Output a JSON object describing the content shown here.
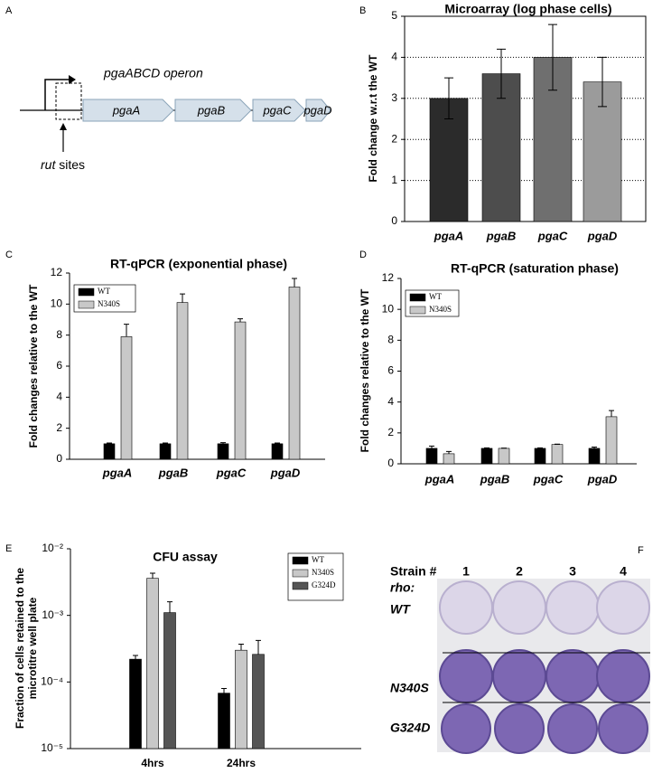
{
  "panel_labels": [
    "A",
    "B",
    "C",
    "D",
    "E",
    "F"
  ],
  "diagram": {
    "operon_label": "pgaABCD operon",
    "genes": [
      "pgaA",
      "pgaB",
      "pgaC",
      "pgaD"
    ],
    "site_label": [
      "rut",
      "sites"
    ]
  },
  "photo": {
    "column_header": "Strain #",
    "columns": [
      "1",
      "2",
      "3",
      "4"
    ],
    "row_header": "rho:",
    "rows": [
      "WT",
      "N340S",
      "G324D"
    ]
  },
  "chart_data": [
    {
      "type": "bar",
      "title": "Microarray (log phase cells)",
      "y_label": "Fold change w.r.t the WT",
      "categories": [
        "pgaA",
        "pgaB",
        "pgaC",
        "pgaD"
      ],
      "values": [
        3.0,
        3.6,
        4.0,
        3.4
      ],
      "errors": [
        0.5,
        0.6,
        0.8,
        0.6
      ],
      "colors": [
        "#2b2b2b",
        "#4d4d4d",
        "#6f6f6f",
        "#9b9b9b"
      ],
      "error_direction": "both",
      "ylim": [
        0,
        5
      ],
      "yticks": [
        0,
        1,
        2,
        3,
        4,
        5
      ],
      "grid": true,
      "frame": true
    },
    {
      "type": "bar",
      "title": "RT-qPCR (exponential phase)",
      "y_label": "Fold changes relative to the WT",
      "categories": [
        "pgaA",
        "pgaB",
        "pgaC",
        "pgaD"
      ],
      "series": [
        {
          "name": "WT",
          "color": "#000000",
          "values": [
            1,
            1,
            1,
            1
          ],
          "errors": [
            0.05,
            0.05,
            0.07,
            0.05
          ]
        },
        {
          "name": "N340S",
          "color": "#c8c8c8",
          "values": [
            7.9,
            10.1,
            8.85,
            11.1
          ],
          "errors": [
            0.8,
            0.55,
            0.2,
            0.55
          ]
        }
      ],
      "error_direction": "up",
      "ylim": [
        0,
        12
      ],
      "yticks": [
        0,
        2,
        4,
        6,
        8,
        10,
        12
      ],
      "legend": "upper left"
    },
    {
      "type": "bar",
      "title": "RT-qPCR (saturation phase)",
      "y_label": "Fold changes relative to the WT",
      "categories": [
        "pgaA",
        "pgaB",
        "pgaC",
        "pgaD"
      ],
      "series": [
        {
          "name": "WT",
          "color": "#000000",
          "values": [
            1.0,
            1.0,
            1.0,
            1.0
          ],
          "errors": [
            0.15,
            0.03,
            0.03,
            0.08
          ]
        },
        {
          "name": "N340S",
          "color": "#c8c8c8",
          "values": [
            0.65,
            1.0,
            1.25,
            3.05
          ],
          "errors": [
            0.15,
            0.02,
            0.02,
            0.4
          ]
        }
      ],
      "error_direction": "up",
      "ylim": [
        0,
        12
      ],
      "yticks": [
        0,
        2,
        4,
        6,
        8,
        10,
        12
      ],
      "legend": "upper left"
    },
    {
      "type": "bar",
      "title": "CFU assay",
      "y_label": [
        "Fraction of cells retained to the",
        "microtitre well plate"
      ],
      "categories": [
        "4hrs",
        "24hrs"
      ],
      "series": [
        {
          "name": "WT",
          "color": "#000000",
          "values": [
            0.00022,
            6.8e-05
          ],
          "errors": [
            3e-05,
            1.2e-05
          ]
        },
        {
          "name": "N340S",
          "color": "#c8c8c8",
          "values": [
            0.0036,
            0.0003
          ],
          "errors": [
            0.0007,
            7e-05
          ]
        },
        {
          "name": "G324D",
          "color": "#555555",
          "values": [
            0.0011,
            0.00026
          ],
          "errors": [
            0.0005,
            0.00016
          ]
        }
      ],
      "error_direction": "up",
      "log_scale": true,
      "ylim": [
        1e-05,
        0.01
      ],
      "yticks": [
        {
          "value": 1e-05,
          "label": "10⁻⁵"
        },
        {
          "value": 0.0001,
          "label": "10⁻⁴"
        },
        {
          "value": 0.001,
          "label": "10⁻³"
        },
        {
          "value": 0.01,
          "label": "10⁻²"
        }
      ],
      "legend": "upper right"
    }
  ]
}
